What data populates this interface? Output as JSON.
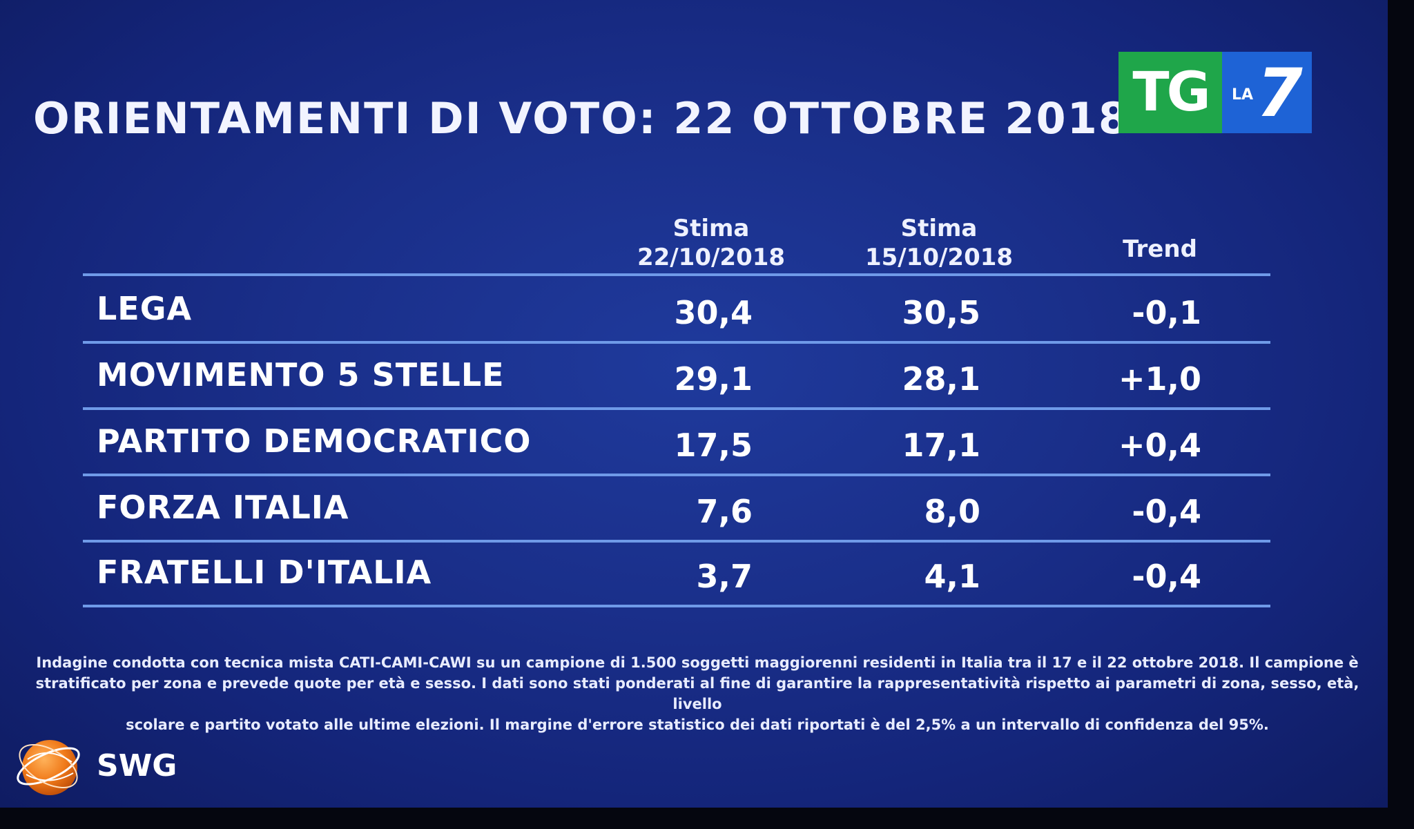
{
  "title": "ORIENTAMENTI DI VOTO: 22 OTTOBRE 2018",
  "logo": {
    "tg": "TG",
    "la": "LA",
    "seven": "7",
    "colors": {
      "green": "#1fa64a",
      "blue": "#1e63d6"
    }
  },
  "table": {
    "headers": {
      "col1_line1": "Stima",
      "col1_line2": "22/10/2018",
      "col2_line1": "Stima",
      "col2_line2": "15/10/2018",
      "col3": "Trend"
    },
    "rows": [
      {
        "party": "LEGA",
        "current": "30,4",
        "previous": "30,5",
        "trend": "-0,1"
      },
      {
        "party": "MOVIMENTO 5 STELLE",
        "current": "29,1",
        "previous": "28,1",
        "trend": "+1,0"
      },
      {
        "party": "PARTITO DEMOCRATICO",
        "current": "17,5",
        "previous": "17,1",
        "trend": "+0,4"
      },
      {
        "party": "FORZA ITALIA",
        "current": "7,6",
        "previous": "8,0",
        "trend": "-0,4"
      },
      {
        "party": "FRATELLI D'ITALIA",
        "current": "3,7",
        "previous": "4,1",
        "trend": "-0,4"
      }
    ]
  },
  "note": {
    "line1": "Indagine condotta con tecnica mista CATI-CAMI-CAWI su un campione di 1.500 soggetti maggiorenni residenti in Italia tra il 17 e il 22 ottobre 2018. Il campione è",
    "line2": "stratificato per zona e prevede quote per età e sesso. I dati sono stati ponderati al fine di garantire la rappresentatività rispetto ai parametri di zona, sesso, età, livello",
    "line3": "scolare e partito votato alle ultime elezioni. Il margine d'errore statistico dei dati riportati è del 2,5% a un intervallo di confidenza del 95%."
  },
  "swg": {
    "label": "SWG",
    "icon": "orange-globe-icon",
    "color": "#f07a1a"
  }
}
